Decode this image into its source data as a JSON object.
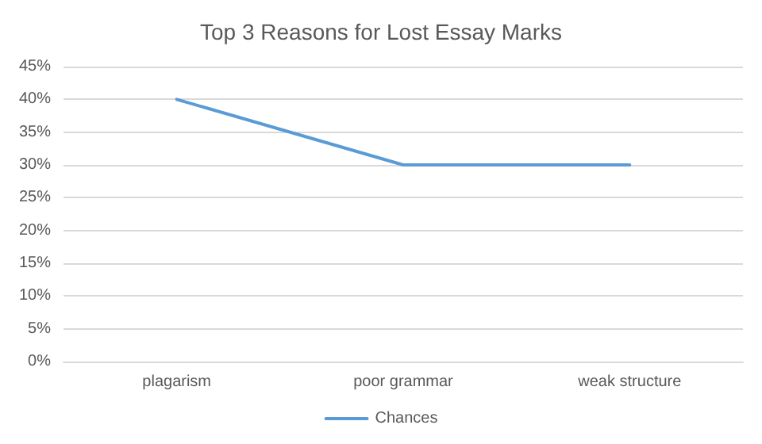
{
  "chart_data": {
    "type": "line",
    "title": "Top 3 Reasons for Lost Essay Marks",
    "categories": [
      "plagarism",
      "poor grammar",
      "weak structure"
    ],
    "series": [
      {
        "name": "Chances",
        "color": "#5b9bd5",
        "values": [
          40,
          30,
          30
        ]
      }
    ],
    "ylim": [
      0,
      45
    ],
    "yticks": [
      {
        "value": 0,
        "label": "0%"
      },
      {
        "value": 5,
        "label": "5%"
      },
      {
        "value": 10,
        "label": "10%"
      },
      {
        "value": 15,
        "label": "15%"
      },
      {
        "value": 20,
        "label": "20%"
      },
      {
        "value": 25,
        "label": "25%"
      },
      {
        "value": 30,
        "label": "30%"
      },
      {
        "value": 35,
        "label": "35%"
      },
      {
        "value": 40,
        "label": "40%"
      },
      {
        "value": 45,
        "label": "45%"
      }
    ],
    "grid": "y",
    "legend": "bottom",
    "marker": "none",
    "line_style": "solid"
  }
}
